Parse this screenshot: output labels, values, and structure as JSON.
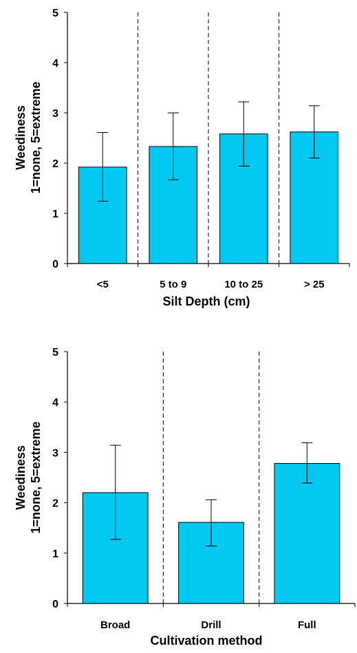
{
  "chart_data": [
    {
      "type": "bar",
      "xlabel": "Silt Depth (cm)",
      "ylabel": [
        "Weediness",
        "1=none, 5=extreme"
      ],
      "ylim": [
        0,
        5
      ],
      "yticks": [
        "0",
        "1",
        "2",
        "3",
        "4",
        "5"
      ],
      "categories": [
        "<5",
        "5 to 9",
        "10 to 25",
        "> 25"
      ],
      "values": [
        1.92,
        2.33,
        2.58,
        2.62
      ],
      "error_low": [
        1.24,
        1.67,
        1.94,
        2.1
      ],
      "error_high": [
        2.61,
        3.0,
        3.22,
        3.14
      ],
      "bar_color": "#00C8F0",
      "separators": "dashed"
    },
    {
      "type": "bar",
      "xlabel": "Cultivation method",
      "ylabel": [
        "Weediness",
        "1=none, 5=extreme"
      ],
      "ylim": [
        0,
        5
      ],
      "yticks": [
        "0",
        "1",
        "2",
        "3",
        "4",
        "5"
      ],
      "categories": [
        "Broad",
        "Drill",
        "Full"
      ],
      "values": [
        2.2,
        1.61,
        2.78
      ],
      "error_low": [
        1.27,
        1.14,
        2.39
      ],
      "error_high": [
        3.14,
        2.06,
        3.19
      ],
      "bar_color": "#00C8F0",
      "separators": "dashed"
    }
  ]
}
